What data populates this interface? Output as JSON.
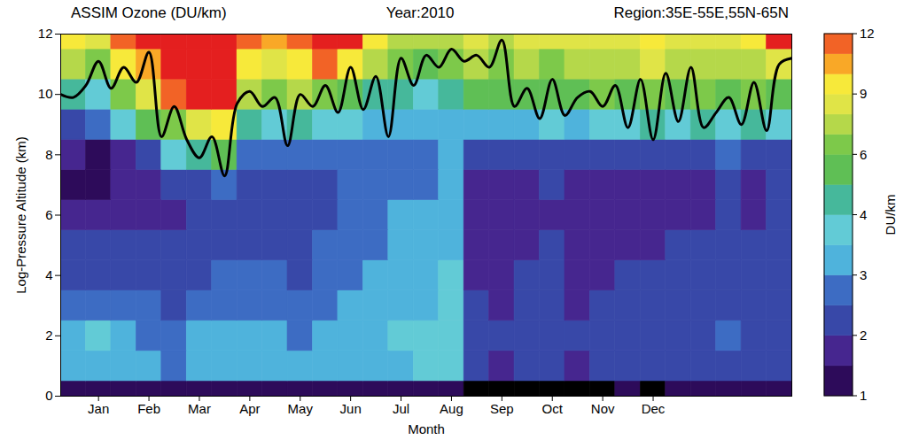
{
  "chart_data": {
    "type": "heatmap",
    "title": "ASSIM Ozone (DU/km)",
    "annotations": [
      "Year:2010",
      "Region:35E-55E,55N-65N"
    ],
    "x_label": "Month",
    "y_label": "Log-Pressure Altitude (km)",
    "xlim": [
      0.25,
      14.75
    ],
    "xticks": [
      {
        "value": 1,
        "label": "Jan"
      },
      {
        "value": 2,
        "label": "Feb"
      },
      {
        "value": 3,
        "label": "Mar"
      },
      {
        "value": 4,
        "label": "Apr"
      },
      {
        "value": 5,
        "label": "May"
      },
      {
        "value": 6,
        "label": "Jun"
      },
      {
        "value": 7,
        "label": "Jul"
      },
      {
        "value": 8,
        "label": "Aug"
      },
      {
        "value": 9,
        "label": "Sep"
      },
      {
        "value": 10,
        "label": "Oct"
      },
      {
        "value": 11,
        "label": "Nov"
      },
      {
        "value": 12,
        "label": "Dec"
      }
    ],
    "ylim": [
      0,
      12
    ],
    "yticks": [
      0,
      2,
      4,
      6,
      8,
      10,
      12
    ],
    "x": [
      0.5,
      1.0,
      1.5,
      2.0,
      2.5,
      3.0,
      3.5,
      4.0,
      4.5,
      5.0,
      5.5,
      6.0,
      6.5,
      7.0,
      7.5,
      8.0,
      8.5,
      9.0,
      9.5,
      10.0,
      10.5,
      11.0,
      11.5,
      12.0,
      12.5,
      13.0,
      13.5,
      14.0,
      14.5
    ],
    "y": [
      0,
      1,
      2,
      3,
      4,
      5,
      6,
      7,
      8,
      9,
      10,
      11,
      12
    ],
    "z": [
      [
        1.3,
        1.3,
        1.2,
        1.3,
        1.3,
        1.2,
        1.3,
        1.3,
        1.4,
        1.3,
        1.3,
        1.4,
        1.3,
        1.4,
        1.3,
        1.4,
        0.9,
        0.8,
        0.8,
        0.9,
        0.8,
        0.9,
        1.0,
        0.9,
        1.1,
        1.2,
        1.1,
        1.2,
        1.1
      ],
      [
        3.3,
        3.4,
        3.2,
        3.0,
        2.8,
        3.1,
        3.3,
        3.4,
        3.2,
        3.0,
        3.3,
        3.1,
        3.2,
        3.4,
        3.5,
        3.6,
        2.0,
        1.9,
        2.1,
        2.2,
        1.9,
        2.0,
        2.2,
        2.1,
        2.3,
        2.2,
        2.4,
        2.2,
        2.3
      ],
      [
        3.2,
        3.5,
        3.1,
        2.9,
        2.6,
        3.0,
        3.2,
        3.3,
        3.1,
        2.9,
        3.2,
        3.2,
        3.3,
        3.5,
        3.6,
        3.9,
        2.1,
        2.0,
        2.2,
        2.3,
        2.0,
        2.1,
        2.2,
        2.2,
        2.4,
        2.3,
        2.5,
        2.3,
        2.4
      ],
      [
        2.6,
        2.8,
        2.7,
        2.5,
        2.3,
        2.6,
        2.7,
        2.9,
        2.8,
        2.6,
        2.9,
        3.0,
        3.1,
        3.3,
        3.4,
        3.9,
        2.0,
        1.9,
        2.1,
        2.2,
        1.9,
        2.0,
        2.1,
        2.1,
        2.3,
        2.2,
        2.3,
        2.2,
        2.3
      ],
      [
        2.3,
        2.4,
        2.4,
        2.2,
        2.1,
        2.4,
        2.5,
        2.6,
        2.5,
        2.4,
        2.6,
        2.9,
        3.0,
        3.2,
        3.4,
        3.8,
        1.9,
        1.8,
        2.0,
        2.1,
        1.8,
        1.9,
        2.0,
        2.0,
        2.2,
        2.1,
        2.2,
        2.1,
        2.2
      ],
      [
        2.0,
        2.1,
        2.2,
        2.1,
        2.0,
        2.3,
        2.3,
        2.4,
        2.3,
        2.3,
        2.5,
        2.8,
        2.9,
        3.1,
        3.2,
        3.3,
        1.8,
        1.7,
        1.9,
        2.0,
        1.7,
        1.8,
        1.9,
        1.9,
        2.0,
        2.0,
        2.1,
        2.0,
        2.1
      ],
      [
        1.6,
        1.5,
        1.8,
        1.9,
        1.9,
        2.2,
        2.1,
        2.2,
        2.2,
        2.2,
        2.4,
        2.7,
        2.8,
        3.0,
        3.0,
        3.1,
        1.8,
        1.7,
        1.8,
        1.9,
        1.6,
        1.7,
        1.8,
        1.6,
        1.9,
        1.8,
        2.0,
        1.9,
        2.0
      ],
      [
        1.4,
        1.3,
        1.6,
        1.8,
        2.0,
        2.4,
        2.6,
        2.2,
        2.1,
        2.2,
        2.3,
        2.6,
        2.7,
        2.8,
        2.9,
        3.0,
        1.9,
        1.8,
        1.9,
        2.0,
        1.7,
        1.8,
        1.7,
        1.5,
        1.9,
        1.7,
        2.0,
        1.9,
        2.0
      ],
      [
        1.5,
        1.4,
        1.8,
        2.3,
        3.5,
        4.2,
        5.5,
        2.9,
        2.6,
        2.5,
        2.6,
        2.7,
        2.8,
        2.9,
        2.8,
        3.0,
        2.2,
        2.1,
        2.3,
        2.4,
        2.0,
        2.3,
        2.0,
        2.4,
        2.3,
        2.2,
        2.5,
        2.4,
        2.4
      ],
      [
        2.4,
        2.5,
        3.5,
        5.2,
        6.5,
        8.5,
        9.5,
        4.0,
        3.6,
        4.2,
        3.8,
        3.6,
        3.3,
        3.1,
        3.0,
        3.1,
        3.2,
        3.3,
        3.4,
        3.6,
        3.1,
        3.8,
        3.5,
        4.6,
        3.6,
        4.2,
        3.9,
        4.3,
        3.9
      ],
      [
        4.2,
        3.8,
        6.0,
        8.2,
        11.0,
        12.5,
        12.8,
        7.0,
        6.5,
        7.2,
        6.8,
        5.8,
        4.8,
        4.0,
        3.9,
        4.1,
        5.5,
        5.0,
        5.8,
        5.2,
        5.6,
        6.2,
        5.4,
        6.8,
        5.5,
        6.3,
        5.9,
        6.1,
        5.5
      ],
      [
        7.0,
        6.5,
        9.0,
        10.5,
        13.0,
        13.5,
        13.2,
        9.0,
        8.5,
        9.0,
        11.0,
        9.5,
        7.2,
        6.0,
        5.8,
        6.2,
        7.0,
        6.6,
        7.4,
        6.8,
        7.2,
        7.8,
        7.0,
        8.2,
        7.1,
        7.6,
        7.3,
        7.9,
        8.8
      ],
      [
        9.0,
        8.6,
        11.5,
        12.8,
        14.0,
        14.5,
        14.0,
        11.2,
        10.5,
        11.0,
        13.0,
        12.0,
        9.2,
        7.8,
        7.0,
        7.8,
        8.2,
        7.9,
        8.6,
        8.0,
        8.4,
        8.9,
        8.1,
        9.0,
        8.3,
        8.7,
        8.5,
        9.2,
        12.3
      ]
    ],
    "colorbar": {
      "label": "DU/km",
      "range": [
        1,
        12
      ],
      "ticks": [
        1,
        2,
        3,
        4,
        6,
        9,
        12
      ],
      "levels": [
        1,
        1.5,
        2,
        2.5,
        3,
        3.5,
        4,
        5,
        6,
        7,
        8,
        9,
        10,
        11,
        12
      ],
      "colors": [
        "#000000",
        "#2d0b5a",
        "#46268f",
        "#3848a8",
        "#3d6cc3",
        "#4fb3dc",
        "#62cbd6",
        "#46b89b",
        "#5fbf55",
        "#7dc94a",
        "#b5d84a",
        "#e0e447",
        "#f7e93a",
        "#f9a827",
        "#f26326",
        "#e41f1f"
      ]
    },
    "series": [
      {
        "type": "line",
        "color": "#000000",
        "x": [
          0.25,
          0.5,
          0.75,
          1.0,
          1.25,
          1.5,
          1.75,
          2.0,
          2.25,
          2.5,
          2.75,
          3.0,
          3.25,
          3.5,
          3.75,
          4.0,
          4.25,
          4.5,
          4.75,
          5.0,
          5.25,
          5.5,
          5.75,
          6.0,
          6.25,
          6.5,
          6.75,
          7.0,
          7.25,
          7.5,
          7.75,
          8.0,
          8.25,
          8.5,
          8.75,
          9.0,
          9.25,
          9.5,
          9.75,
          10.0,
          10.25,
          10.5,
          10.75,
          11.0,
          11.25,
          11.5,
          11.75,
          12.0,
          12.25,
          12.5,
          12.75,
          13.0,
          13.25,
          13.5,
          13.75,
          14.0,
          14.25,
          14.5,
          14.75
        ],
        "values": [
          10.0,
          9.9,
          10.3,
          11.1,
          10.2,
          10.9,
          10.4,
          11.4,
          8.6,
          9.6,
          8.5,
          7.9,
          8.6,
          7.3,
          9.7,
          10.1,
          9.6,
          9.9,
          8.3,
          10.0,
          9.6,
          10.3,
          9.4,
          10.9,
          9.5,
          10.6,
          8.6,
          11.2,
          10.3,
          11.3,
          10.9,
          11.5,
          11.1,
          11.3,
          10.9,
          11.8,
          9.6,
          10.2,
          9.2,
          10.5,
          9.3,
          9.9,
          10.1,
          9.6,
          10.3,
          8.9,
          10.5,
          8.5,
          10.7,
          9.1,
          10.9,
          8.9,
          9.4,
          9.9,
          9.0,
          10.4,
          8.8,
          11.0,
          11.2
        ]
      }
    ]
  }
}
